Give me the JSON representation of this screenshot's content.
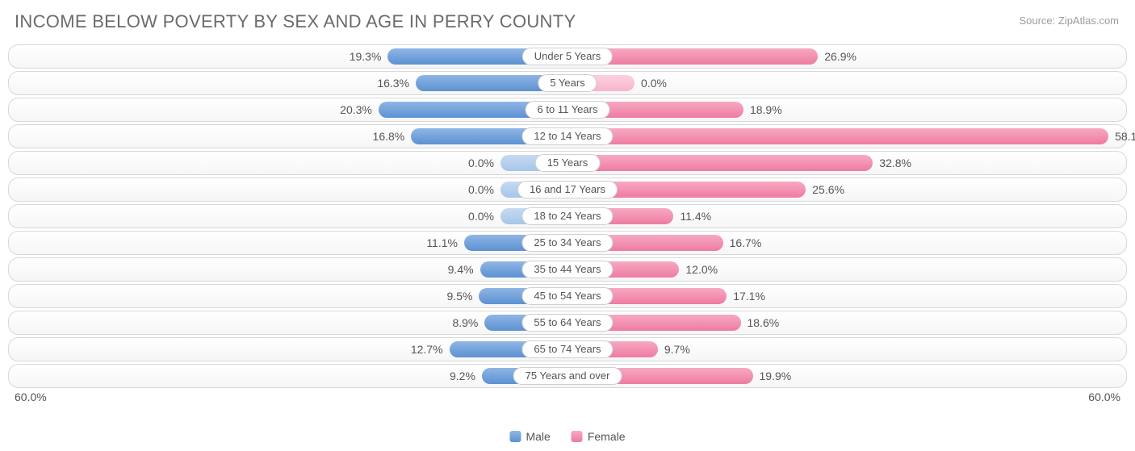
{
  "title": "INCOME BELOW POVERTY BY SEX AND AGE IN PERRY COUNTY",
  "source": "Source: ZipAtlas.com",
  "axis_max": 60.0,
  "zero_bar_placeholder_pct": 12.0,
  "colors": {
    "male_top": "#8fb6e5",
    "male_bottom": "#5c91d2",
    "male_zero_top": "#c6daf1",
    "male_zero_bottom": "#a6c6e9",
    "female_top": "#f7a9c1",
    "female_bottom": "#ee7ba2",
    "female_zero_top": "#fbd0de",
    "female_zero_bottom": "#f7b6cd",
    "row_border": "#d8d8d8",
    "title_color": "#6b6b6b",
    "label_color": "#555555",
    "background": "#ffffff"
  },
  "legend": {
    "male": "Male",
    "female": "Female"
  },
  "axis_label_left": "60.0%",
  "axis_label_right": "60.0%",
  "categories": [
    {
      "label": "Under 5 Years",
      "male": 19.3,
      "female": 26.9
    },
    {
      "label": "5 Years",
      "male": 16.3,
      "female": 0.0
    },
    {
      "label": "6 to 11 Years",
      "male": 20.3,
      "female": 18.9
    },
    {
      "label": "12 to 14 Years",
      "male": 16.8,
      "female": 58.1
    },
    {
      "label": "15 Years",
      "male": 0.0,
      "female": 32.8
    },
    {
      "label": "16 and 17 Years",
      "male": 0.0,
      "female": 25.6
    },
    {
      "label": "18 to 24 Years",
      "male": 0.0,
      "female": 11.4
    },
    {
      "label": "25 to 34 Years",
      "male": 11.1,
      "female": 16.7
    },
    {
      "label": "35 to 44 Years",
      "male": 9.4,
      "female": 12.0
    },
    {
      "label": "45 to 54 Years",
      "male": 9.5,
      "female": 17.1
    },
    {
      "label": "55 to 64 Years",
      "male": 8.9,
      "female": 18.6
    },
    {
      "label": "65 to 74 Years",
      "male": 12.7,
      "female": 9.7
    },
    {
      "label": "75 Years and over",
      "male": 9.2,
      "female": 19.9
    }
  ]
}
